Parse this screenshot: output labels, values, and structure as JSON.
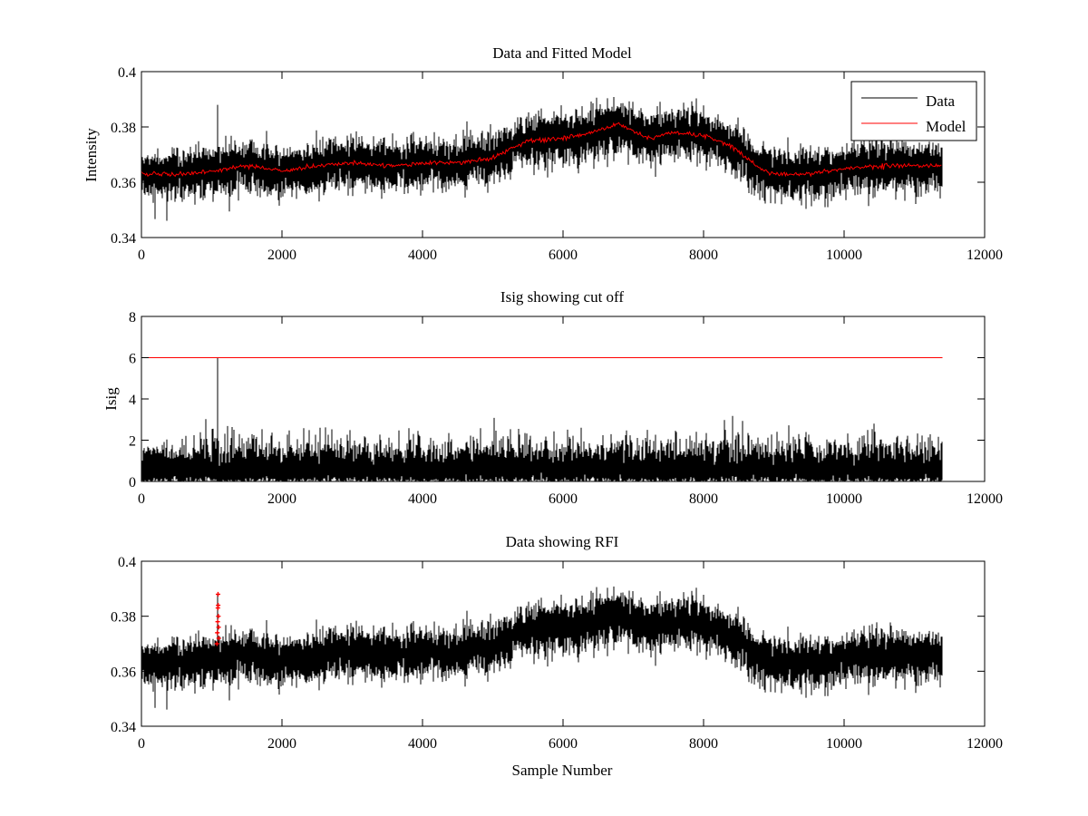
{
  "figure": {
    "colors": {
      "data": "#000000",
      "model": "#ff0000",
      "background": "#ffffff"
    }
  },
  "chart_data": [
    {
      "type": "line",
      "title": "Data and Fitted Model",
      "xlabel": "",
      "ylabel": "Intensity",
      "xlim": [
        0,
        12000
      ],
      "ylim": [
        0.34,
        0.4
      ],
      "xticks": [
        "0",
        "2000",
        "4000",
        "6000",
        "8000",
        "10000",
        "12000"
      ],
      "yticks": [
        "0.34",
        "0.36",
        "0.38",
        "0.4"
      ],
      "grid": false,
      "legend": {
        "placement": "top-right",
        "entries": [
          "Data",
          "Model"
        ]
      },
      "n_samples": 11400,
      "series": [
        {
          "name": "Data",
          "color": "#000000",
          "noise_std": 0.004,
          "spikes": [
            {
              "x": 1090,
              "y": 0.388
            }
          ],
          "baseline": {
            "x": [
              0,
              500,
              1000,
              1500,
              2000,
              2500,
              3000,
              3500,
              4000,
              4500,
              5000,
              5500,
              6000,
              6400,
              6800,
              7200,
              7600,
              8000,
              8400,
              8800,
              9000,
              9500,
              10000,
              10500,
              11000,
              11400
            ],
            "y": [
              0.363,
              0.363,
              0.364,
              0.366,
              0.364,
              0.366,
              0.367,
              0.366,
              0.367,
              0.367,
              0.369,
              0.375,
              0.376,
              0.378,
              0.381,
              0.376,
              0.378,
              0.377,
              0.373,
              0.365,
              0.363,
              0.363,
              0.365,
              0.366,
              0.366,
              0.366
            ]
          }
        },
        {
          "name": "Model",
          "color": "#ff0000",
          "x": [
            0,
            500,
            1000,
            1500,
            2000,
            2500,
            3000,
            3500,
            4000,
            4500,
            5000,
            5500,
            6000,
            6400,
            6800,
            7200,
            7600,
            8000,
            8400,
            8800,
            9000,
            9500,
            10000,
            10500,
            11000,
            11400
          ],
          "y": [
            0.363,
            0.363,
            0.364,
            0.366,
            0.364,
            0.366,
            0.367,
            0.366,
            0.367,
            0.367,
            0.369,
            0.375,
            0.376,
            0.378,
            0.381,
            0.376,
            0.378,
            0.377,
            0.373,
            0.365,
            0.363,
            0.363,
            0.365,
            0.366,
            0.366,
            0.366
          ]
        }
      ]
    },
    {
      "type": "line",
      "title": "Isig showing cut off",
      "xlabel": "",
      "ylabel": "Isig",
      "xlim": [
        0,
        12000
      ],
      "ylim": [
        0,
        8
      ],
      "xticks": [
        "0",
        "2000",
        "4000",
        "6000",
        "8000",
        "10000",
        "12000"
      ],
      "yticks": [
        "0",
        "2",
        "4",
        "6",
        "8"
      ],
      "grid": false,
      "n_samples": 11400,
      "series": [
        {
          "color": "#000000",
          "mean": 0.8,
          "max_typical": 3.8,
          "spikes": [
            {
              "x": 1090,
              "y": 6.0
            }
          ]
        },
        {
          "color": "#ff0000",
          "x": [
            0,
            11400
          ],
          "y": [
            6,
            6
          ]
        }
      ]
    },
    {
      "type": "line",
      "title": "Data showing RFI",
      "xlabel": "Sample Number",
      "ylabel": "",
      "xlim": [
        0,
        12000
      ],
      "ylim": [
        0.34,
        0.4
      ],
      "xticks": [
        "0",
        "2000",
        "4000",
        "6000",
        "8000",
        "10000",
        "12000"
      ],
      "yticks": [
        "0.34",
        "0.36",
        "0.38",
        "0.4"
      ],
      "grid": false,
      "n_samples": 11400,
      "series": [
        {
          "color": "#000000",
          "same_as": "Data"
        },
        {
          "color": "#ff0000",
          "marker": "+",
          "x": [
            1075,
            1080,
            1085,
            1088,
            1090,
            1092,
            1095,
            1098,
            1100
          ],
          "y": [
            0.37,
            0.374,
            0.378,
            0.383,
            0.388,
            0.384,
            0.38,
            0.376,
            0.372
          ]
        }
      ]
    }
  ]
}
